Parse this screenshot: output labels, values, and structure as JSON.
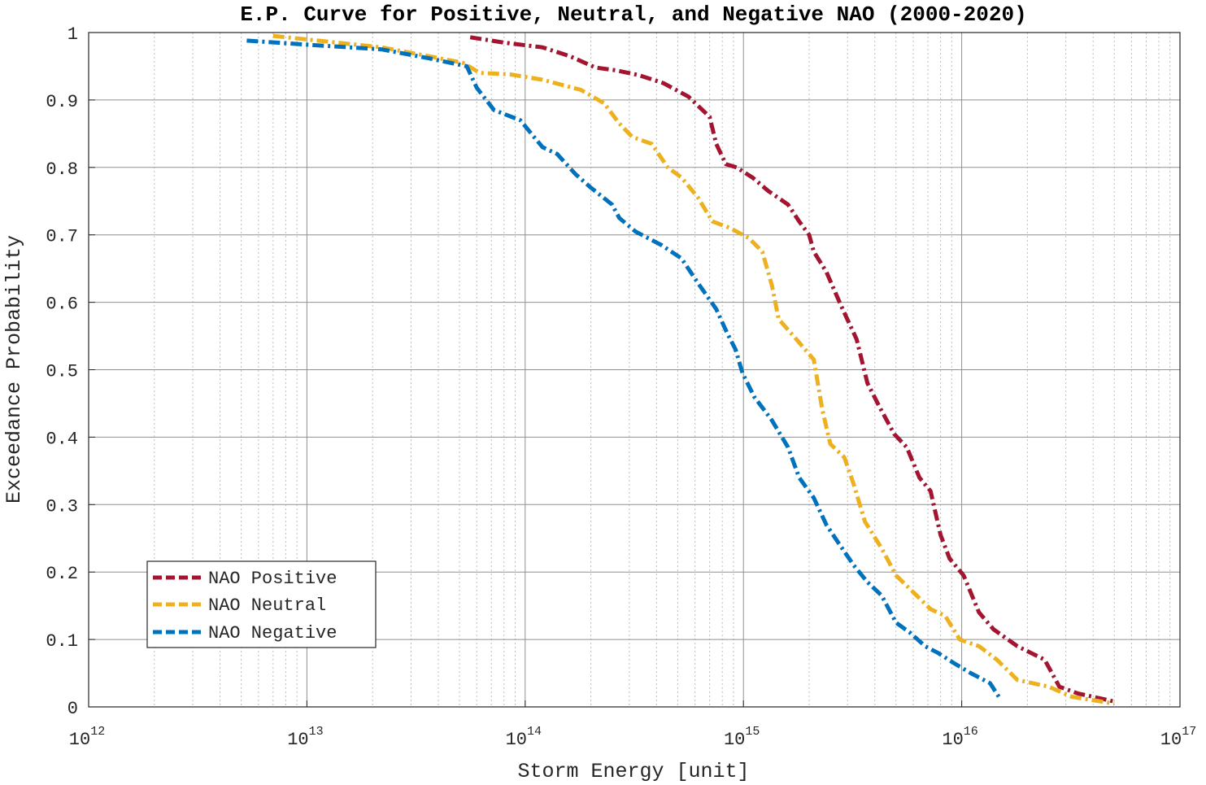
{
  "chart_data": {
    "type": "line",
    "title": "E.P. Curve for Positive, Neutral, and Negative NAO (2000-2020)",
    "xlabel": "Storm Energy [unit]",
    "ylabel": "Exceedance Probability",
    "xscale": "log",
    "xlim": [
      1000000000000.0,
      1e+17
    ],
    "ylim": [
      0,
      1
    ],
    "grid": true,
    "minor_grid": true,
    "legend_position": "bottom-left",
    "x_ticks": [
      {
        "base": "10",
        "exp": "12",
        "value": 1000000000000.0
      },
      {
        "base": "10",
        "exp": "13",
        "value": 10000000000000.0
      },
      {
        "base": "10",
        "exp": "14",
        "value": 100000000000000.0
      },
      {
        "base": "10",
        "exp": "15",
        "value": 1000000000000000.0
      },
      {
        "base": "10",
        "exp": "16",
        "value": 1e+16
      },
      {
        "base": "10",
        "exp": "17",
        "value": 1e+17
      }
    ],
    "y_ticks": [
      "0",
      "0.1",
      "0.2",
      "0.3",
      "0.4",
      "0.5",
      "0.6",
      "0.7",
      "0.8",
      "0.9",
      "1"
    ],
    "series": [
      {
        "name": "NAO Positive",
        "color": "#A2142F",
        "x": [
          56000000000000.0,
          80000000000000.0,
          120000000000000.0,
          160000000000000.0,
          210000000000000.0,
          260000000000000.0,
          330000000000000.0,
          430000000000000.0,
          560000000000000.0,
          700000000000000.0,
          750000000000000.0,
          830000000000000.0,
          930000000000000.0,
          1100000000000000.0,
          1300000000000000.0,
          1600000000000000.0,
          1800000000000000.0,
          2000000000000000.0,
          2100000000000000.0,
          2400000000000000.0,
          2800000000000000.0,
          3300000000000000.0,
          3700000000000000.0,
          4200000000000000.0,
          4900000000000000.0,
          5600000000000000.0,
          6400000000000000.0,
          7200000000000000.0,
          8000000000000000.0,
          8800000000000000.0,
          1.02e+16,
          1.2e+16,
          1.4e+16,
          1.8e+16,
          2.4e+16,
          2.8e+16,
          3.4e+16,
          5e+16
        ],
        "y": [
          0.993,
          0.985,
          0.978,
          0.965,
          0.948,
          0.944,
          0.937,
          0.925,
          0.905,
          0.875,
          0.835,
          0.805,
          0.8,
          0.785,
          0.765,
          0.745,
          0.72,
          0.7,
          0.675,
          0.645,
          0.595,
          0.545,
          0.48,
          0.445,
          0.405,
          0.385,
          0.34,
          0.32,
          0.255,
          0.22,
          0.195,
          0.14,
          0.115,
          0.09,
          0.07,
          0.03,
          0.02,
          0.008
        ]
      },
      {
        "name": "NAO Neutral",
        "color": "#EDB120",
        "x": [
          7000000000000.0,
          22000000000000.0,
          36000000000000.0,
          52000000000000.0,
          62000000000000.0,
          85000000000000.0,
          120000000000000.0,
          180000000000000.0,
          230000000000000.0,
          270000000000000.0,
          310000000000000.0,
          380000000000000.0,
          450000000000000.0,
          520000000000000.0,
          620000000000000.0,
          720000000000000.0,
          870000000000000.0,
          1060000000000000.0,
          1220000000000000.0,
          1350000000000000.0,
          1450000000000000.0,
          1750000000000000.0,
          2100000000000000.0,
          2300000000000000.0,
          2500000000000000.0,
          2900000000000000.0,
          3200000000000000.0,
          3600000000000000.0,
          4300000000000000.0,
          5000000000000000.0,
          6000000000000000.0,
          7200000000000000.0,
          8400000000000000.0,
          9800000000000000.0,
          1.2e+16,
          1.45e+16,
          1.8e+16,
          2.5e+16,
          3.2e+16,
          5e+16
        ],
        "y": [
          0.995,
          0.978,
          0.965,
          0.955,
          0.94,
          0.938,
          0.93,
          0.915,
          0.895,
          0.865,
          0.845,
          0.835,
          0.8,
          0.785,
          0.755,
          0.72,
          0.71,
          0.695,
          0.675,
          0.625,
          0.575,
          0.545,
          0.515,
          0.44,
          0.39,
          0.37,
          0.33,
          0.275,
          0.235,
          0.195,
          0.17,
          0.145,
          0.135,
          0.1,
          0.09,
          0.07,
          0.04,
          0.03,
          0.015,
          0.005
        ]
      },
      {
        "name": "NAO Negative",
        "color": "#0072BD",
        "x": [
          5300000000000.0,
          10000000000000.0,
          22000000000000.0,
          36000000000000.0,
          54000000000000.0,
          60000000000000.0,
          72000000000000.0,
          95000000000000.0,
          120000000000000.0,
          140000000000000.0,
          170000000000000.0,
          200000000000000.0,
          250000000000000.0,
          270000000000000.0,
          320000000000000.0,
          420000000000000.0,
          520000000000000.0,
          630000000000000.0,
          750000000000000.0,
          840000000000000.0,
          920000000000000.0,
          990000000000000.0,
          1120000000000000.0,
          1350000000000000.0,
          1600000000000000.0,
          1800000000000000.0,
          2100000000000000.0,
          2400000000000000.0,
          2700000000000000.0,
          3200000000000000.0,
          3700000000000000.0,
          4300000000000000.0,
          5000000000000000.0,
          5800000000000000.0,
          6800000000000000.0,
          7800000000000000.0,
          9200000000000000.0,
          1.1e+16,
          1.35e+16,
          1.5e+16
        ],
        "y": [
          0.988,
          0.982,
          0.975,
          0.962,
          0.95,
          0.918,
          0.885,
          0.87,
          0.83,
          0.82,
          0.79,
          0.77,
          0.745,
          0.725,
          0.705,
          0.685,
          0.665,
          0.625,
          0.59,
          0.555,
          0.53,
          0.495,
          0.46,
          0.425,
          0.385,
          0.34,
          0.31,
          0.27,
          0.245,
          0.21,
          0.185,
          0.165,
          0.125,
          0.11,
          0.09,
          0.08,
          0.065,
          0.05,
          0.035,
          0.012
        ]
      }
    ]
  }
}
